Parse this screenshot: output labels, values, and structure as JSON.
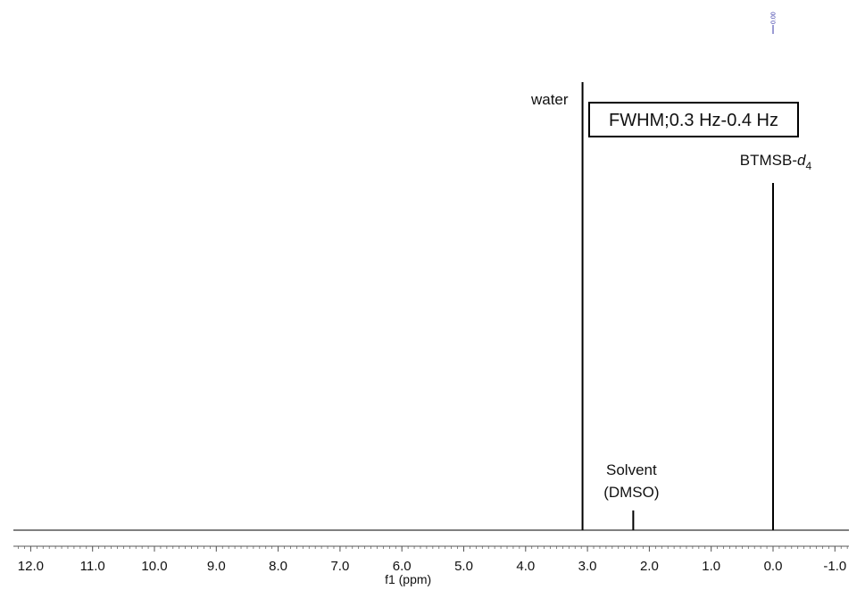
{
  "chart_data": {
    "type": "line",
    "title": "",
    "xlabel": "f1 (ppm)",
    "ylabel": "",
    "xlim": [
      12.2,
      -1.2
    ],
    "x_reversed": true,
    "grid": false,
    "legend": "none",
    "x_ticks": [
      {
        "value": 12.0,
        "label": "12.0"
      },
      {
        "value": 11.0,
        "label": "11.0"
      },
      {
        "value": 10.0,
        "label": "10.0"
      },
      {
        "value": 9.0,
        "label": "9.0"
      },
      {
        "value": 8.0,
        "label": "8.0"
      },
      {
        "value": 7.0,
        "label": "7.0"
      },
      {
        "value": 6.0,
        "label": "6.0"
      },
      {
        "value": 5.0,
        "label": "5.0"
      },
      {
        "value": 4.0,
        "label": "4.0"
      },
      {
        "value": 3.0,
        "label": "3.0"
      },
      {
        "value": 2.0,
        "label": "2.0"
      },
      {
        "value": 1.0,
        "label": "1.0"
      },
      {
        "value": 0.0,
        "label": "0.0"
      },
      {
        "value": -1.0,
        "label": "-1.0"
      }
    ],
    "peaks": [
      {
        "x": 3.08,
        "y": 1.0,
        "label": "water"
      },
      {
        "x": 2.26,
        "y": 0.044,
        "label_line1": "Solvent",
        "label_line2": "(DMSO)"
      },
      {
        "x": 0.0,
        "y": 0.775,
        "label_main": "BTMSB-",
        "label_italic": "d",
        "label_sub": "4"
      }
    ],
    "peak_pick_label": "0.00",
    "annotation_box": "FWHM;0.3 Hz-0.4 Hz",
    "colors": {
      "spectrum": "#000000",
      "axis": "#555555",
      "peak_pick": "#3a3aa8"
    }
  }
}
